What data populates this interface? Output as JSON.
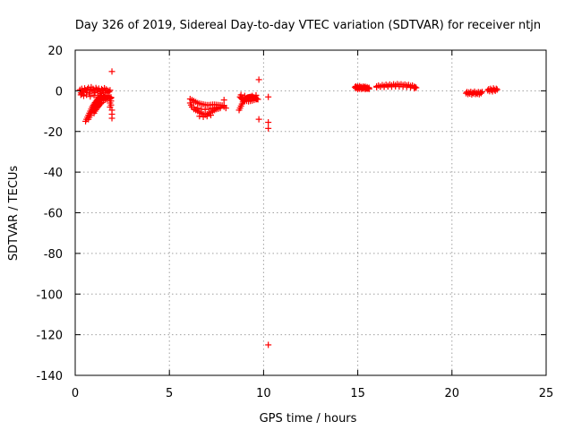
{
  "chart_data": {
    "type": "scatter",
    "title": "Day 326 of 2019, Sidereal Day-to-day VTEC variation (SDTVAR) for receiver ntjn",
    "xlabel": "GPS time / hours",
    "ylabel": "SDTVAR / TECUs",
    "xlim": [
      0,
      25
    ],
    "ylim": [
      -140,
      20
    ],
    "xticks": [
      0,
      5,
      10,
      15,
      20,
      25
    ],
    "yticks": [
      20,
      0,
      -20,
      -40,
      -60,
      -80,
      -100,
      -120,
      -140
    ],
    "xtick_labels": [
      "0",
      "5",
      "10",
      "15",
      "20",
      "25"
    ],
    "ytick_labels": [
      "20",
      "0",
      "-20",
      "-40",
      "-60",
      "-80",
      "-100",
      "-120",
      "-140"
    ],
    "grid": true,
    "marker": "+",
    "color": "#ff0000",
    "series": [
      {
        "name": "SDTVAR",
        "points": [
          [
            0.25,
            0.5
          ],
          [
            0.3,
            -1
          ],
          [
            0.35,
            1
          ],
          [
            0.4,
            0
          ],
          [
            0.45,
            -0.5
          ],
          [
            0.5,
            1.2
          ],
          [
            0.55,
            0.3
          ],
          [
            0.6,
            -0.8
          ],
          [
            0.65,
            0.8
          ],
          [
            0.7,
            1.5
          ],
          [
            0.75,
            -1.2
          ],
          [
            0.8,
            0.5
          ],
          [
            0.85,
            1.8
          ],
          [
            0.9,
            -0.3
          ],
          [
            0.95,
            1
          ],
          [
            1.0,
            0.2
          ],
          [
            1.05,
            -1
          ],
          [
            1.1,
            1.4
          ],
          [
            1.15,
            0.6
          ],
          [
            1.2,
            -0.6
          ],
          [
            1.25,
            1.1
          ],
          [
            1.3,
            0
          ],
          [
            1.35,
            -1.4
          ],
          [
            1.4,
            0.9
          ],
          [
            1.45,
            0.4
          ],
          [
            1.5,
            -0.9
          ],
          [
            1.55,
            1.3
          ],
          [
            1.6,
            -0.2
          ],
          [
            1.65,
            0.7
          ],
          [
            1.7,
            -1.1
          ],
          [
            1.75,
            0.1
          ],
          [
            1.8,
            -0.5
          ],
          [
            1.85,
            0.3
          ],
          [
            0.3,
            -2
          ],
          [
            0.35,
            -1.5
          ],
          [
            0.45,
            -2.5
          ],
          [
            0.6,
            -2
          ],
          [
            0.8,
            -2.8
          ],
          [
            1.0,
            -2.2
          ],
          [
            1.2,
            -3
          ],
          [
            1.4,
            -2.5
          ],
          [
            1.6,
            -3.2
          ],
          [
            1.8,
            -2.8
          ],
          [
            1.9,
            -3.5
          ],
          [
            0.55,
            -15
          ],
          [
            0.6,
            -14
          ],
          [
            0.65,
            -13
          ],
          [
            0.7,
            -12
          ],
          [
            0.75,
            -11
          ],
          [
            0.8,
            -10
          ],
          [
            0.85,
            -9
          ],
          [
            0.9,
            -8
          ],
          [
            0.95,
            -7.2
          ],
          [
            1.0,
            -6.5
          ],
          [
            1.05,
            -5.8
          ],
          [
            1.1,
            -5.2
          ],
          [
            1.15,
            -4.6
          ],
          [
            1.2,
            -4
          ],
          [
            1.25,
            -3.5
          ],
          [
            1.3,
            -3
          ],
          [
            1.35,
            -2.6
          ],
          [
            1.4,
            -2.2
          ],
          [
            0.7,
            -14
          ],
          [
            0.75,
            -13
          ],
          [
            0.8,
            -12
          ],
          [
            0.85,
            -11
          ],
          [
            0.9,
            -10
          ],
          [
            0.95,
            -9.2
          ],
          [
            1.0,
            -8.5
          ],
          [
            1.05,
            -7.8
          ],
          [
            1.1,
            -7.2
          ],
          [
            1.15,
            -6.6
          ],
          [
            1.2,
            -6
          ],
          [
            1.25,
            -5.5
          ],
          [
            1.3,
            -5
          ],
          [
            1.35,
            -4.6
          ],
          [
            1.4,
            -4.2
          ],
          [
            1.45,
            -3.8
          ],
          [
            1.5,
            -3.4
          ],
          [
            1.55,
            -3
          ],
          [
            1.6,
            -2.6
          ],
          [
            1.7,
            -2.2
          ],
          [
            1.0,
            -11
          ],
          [
            1.05,
            -10
          ],
          [
            1.1,
            -9.3
          ],
          [
            1.15,
            -8.6
          ],
          [
            1.2,
            -8
          ],
          [
            1.25,
            -7.4
          ],
          [
            1.3,
            -6.8
          ],
          [
            1.35,
            -6.3
          ],
          [
            1.4,
            -5.8
          ],
          [
            1.5,
            -5
          ],
          [
            1.6,
            -4.4
          ],
          [
            1.7,
            -4
          ],
          [
            1.8,
            -3.6
          ],
          [
            1.9,
            -3.2
          ],
          [
            1.85,
            -4
          ],
          [
            1.9,
            -5
          ],
          [
            1.85,
            -6
          ],
          [
            1.9,
            -7
          ],
          [
            1.85,
            -8
          ],
          [
            1.95,
            9.5
          ],
          [
            1.95,
            -9.5
          ],
          [
            1.95,
            -11.5
          ],
          [
            1.95,
            -13.5
          ],
          [
            6.1,
            -4
          ],
          [
            6.2,
            -4.5
          ],
          [
            6.3,
            -5
          ],
          [
            6.4,
            -5.5
          ],
          [
            6.5,
            -6
          ],
          [
            6.6,
            -6.3
          ],
          [
            6.7,
            -6.5
          ],
          [
            6.8,
            -6.7
          ],
          [
            6.9,
            -6.9
          ],
          [
            7.0,
            -7
          ],
          [
            7.1,
            -7
          ],
          [
            7.2,
            -6.9
          ],
          [
            7.3,
            -6.8
          ],
          [
            7.4,
            -6.8
          ],
          [
            7.5,
            -6.9
          ],
          [
            7.6,
            -7
          ],
          [
            7.7,
            -7.1
          ],
          [
            7.8,
            -7.2
          ],
          [
            7.9,
            -7.2
          ],
          [
            6.1,
            -6
          ],
          [
            6.15,
            -7
          ],
          [
            6.2,
            -8
          ],
          [
            6.3,
            -9
          ],
          [
            6.4,
            -9.5
          ],
          [
            6.5,
            -10
          ],
          [
            6.6,
            -10.5
          ],
          [
            6.7,
            -11
          ],
          [
            6.8,
            -11.5
          ],
          [
            6.9,
            -11.8
          ],
          [
            7.0,
            -11.5
          ],
          [
            7.1,
            -11
          ],
          [
            7.2,
            -10.5
          ],
          [
            7.3,
            -10
          ],
          [
            7.4,
            -9.5
          ],
          [
            7.5,
            -9
          ],
          [
            7.6,
            -8.8
          ],
          [
            7.7,
            -8.5
          ],
          [
            6.3,
            -8
          ],
          [
            6.5,
            -8.5
          ],
          [
            6.7,
            -9
          ],
          [
            6.9,
            -9.2
          ],
          [
            7.1,
            -9
          ],
          [
            7.3,
            -8.6
          ],
          [
            7.5,
            -8.2
          ],
          [
            7.7,
            -8
          ],
          [
            7.9,
            -7.8
          ],
          [
            6.6,
            -12.5
          ],
          [
            6.8,
            -12.8
          ],
          [
            7.0,
            -12.5
          ],
          [
            7.2,
            -12
          ],
          [
            7.9,
            -4.5
          ],
          [
            8.0,
            -8.5
          ],
          [
            8.7,
            -9.5
          ],
          [
            8.75,
            -8.5
          ],
          [
            8.8,
            -7.5
          ],
          [
            8.85,
            -6.5
          ],
          [
            8.9,
            -5.5
          ],
          [
            8.95,
            -4.8
          ],
          [
            9.0,
            -4.2
          ],
          [
            9.05,
            -3.8
          ],
          [
            9.1,
            -3.5
          ],
          [
            9.15,
            -3.3
          ],
          [
            9.2,
            -3.2
          ],
          [
            9.25,
            -3.1
          ],
          [
            9.3,
            -3
          ],
          [
            9.35,
            -3
          ],
          [
            9.4,
            -3.1
          ],
          [
            9.45,
            -3.2
          ],
          [
            9.5,
            -3.3
          ],
          [
            9.55,
            -3.5
          ],
          [
            9.6,
            -3.7
          ],
          [
            9.65,
            -4
          ],
          [
            9.7,
            -4.2
          ],
          [
            8.75,
            -3
          ],
          [
            8.8,
            -3.5
          ],
          [
            8.85,
            -4
          ],
          [
            8.9,
            -4.3
          ],
          [
            8.95,
            -4.5
          ],
          [
            9.0,
            -4.8
          ],
          [
            9.1,
            -5
          ],
          [
            9.2,
            -5.2
          ],
          [
            9.3,
            -5
          ],
          [
            9.4,
            -4.8
          ],
          [
            9.5,
            -4.5
          ],
          [
            9.6,
            -4.2
          ],
          [
            8.8,
            -2
          ],
          [
            9.0,
            -2.5
          ],
          [
            9.2,
            -3.5
          ],
          [
            9.4,
            -2.5
          ],
          [
            9.6,
            -2.2
          ],
          [
            9.75,
            5.5
          ],
          [
            9.75,
            -14
          ],
          [
            10.25,
            -3
          ],
          [
            10.25,
            -15.5
          ],
          [
            10.25,
            -18.5
          ],
          [
            10.25,
            -125
          ],
          [
            14.85,
            1.8
          ],
          [
            14.9,
            1.2
          ],
          [
            14.95,
            1.6
          ],
          [
            15.0,
            0.8
          ],
          [
            15.05,
            1.5
          ],
          [
            15.1,
            1.0
          ],
          [
            15.15,
            1.7
          ],
          [
            15.2,
            0.9
          ],
          [
            15.25,
            1.4
          ],
          [
            15.3,
            1.1
          ],
          [
            15.35,
            1.6
          ],
          [
            15.4,
            0.8
          ],
          [
            15.45,
            1.3
          ],
          [
            15.5,
            1.0
          ],
          [
            15.55,
            1.2
          ],
          [
            15.6,
            0.9
          ],
          [
            14.9,
            2.2
          ],
          [
            15.0,
            2.0
          ],
          [
            15.1,
            2.3
          ],
          [
            15.2,
            1.9
          ],
          [
            15.3,
            2.1
          ],
          [
            15.4,
            2.0
          ],
          [
            15.5,
            1.8
          ],
          [
            15.6,
            1.5
          ],
          [
            16.0,
            2.2
          ],
          [
            16.1,
            2.6
          ],
          [
            16.2,
            2.1
          ],
          [
            16.3,
            2.8
          ],
          [
            16.4,
            2.4
          ],
          [
            16.5,
            3.0
          ],
          [
            16.6,
            2.5
          ],
          [
            16.7,
            3.1
          ],
          [
            16.8,
            2.7
          ],
          [
            16.9,
            3.2
          ],
          [
            17.0,
            2.8
          ],
          [
            17.1,
            3.3
          ],
          [
            17.2,
            2.9
          ],
          [
            17.3,
            3.2
          ],
          [
            17.4,
            2.8
          ],
          [
            17.5,
            3.1
          ],
          [
            17.6,
            2.7
          ],
          [
            17.7,
            2.9
          ],
          [
            17.8,
            2.4
          ],
          [
            17.9,
            2.6
          ],
          [
            18.0,
            2.0
          ],
          [
            18.05,
            1.8
          ],
          [
            18.1,
            1.5
          ],
          [
            16.0,
            1.8
          ],
          [
            16.2,
            2.0
          ],
          [
            16.4,
            1.9
          ],
          [
            16.6,
            2.1
          ],
          [
            16.8,
            2.0
          ],
          [
            17.0,
            2.2
          ],
          [
            17.2,
            2.1
          ],
          [
            17.4,
            2.0
          ],
          [
            17.6,
            1.9
          ],
          [
            17.8,
            1.7
          ],
          [
            18.0,
            1.2
          ],
          [
            20.75,
            -1.2
          ],
          [
            20.8,
            -0.6
          ],
          [
            20.85,
            -1.6
          ],
          [
            20.9,
            -0.8
          ],
          [
            20.95,
            -1.4
          ],
          [
            21.0,
            -0.5
          ],
          [
            21.05,
            -1.8
          ],
          [
            21.1,
            -0.9
          ],
          [
            21.15,
            -1.3
          ],
          [
            21.2,
            -0.4
          ],
          [
            21.25,
            -1.6
          ],
          [
            21.3,
            -1.0
          ],
          [
            21.35,
            -1.5
          ],
          [
            21.4,
            -0.6
          ],
          [
            21.45,
            -1.7
          ],
          [
            21.5,
            -0.8
          ],
          [
            21.55,
            -1.2
          ],
          [
            21.6,
            -0.5
          ],
          [
            21.9,
            0.2
          ],
          [
            21.95,
            0.8
          ],
          [
            22.0,
            -0.2
          ],
          [
            22.05,
            1.0
          ],
          [
            22.1,
            0.4
          ],
          [
            22.15,
            -0.3
          ],
          [
            22.2,
            1.2
          ],
          [
            22.25,
            0.5
          ],
          [
            22.3,
            0.0
          ],
          [
            22.35,
            1.0
          ],
          [
            22.4,
            0.6
          ]
        ]
      }
    ]
  }
}
